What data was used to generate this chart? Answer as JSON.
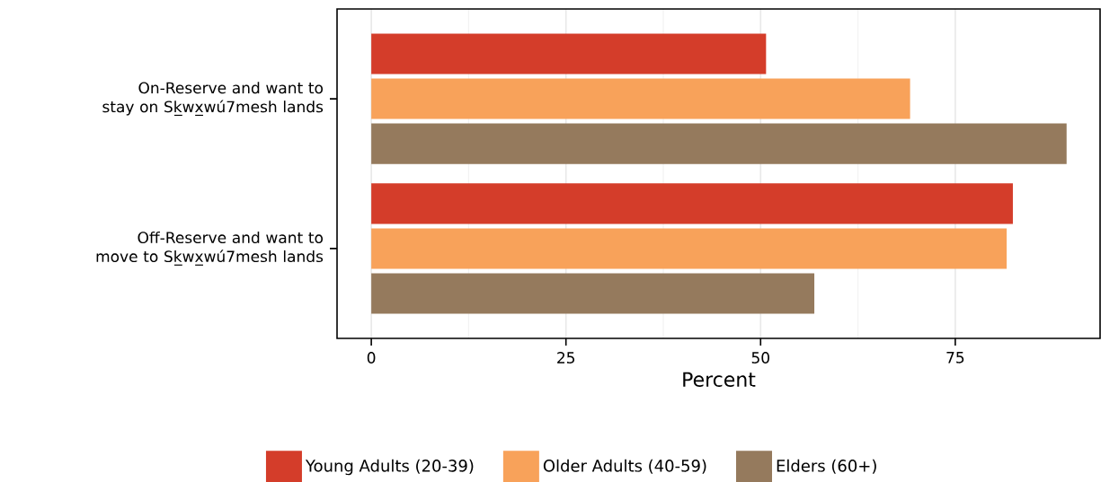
{
  "chart_data": {
    "type": "bar",
    "orientation": "horizontal",
    "xlabel": "Percent",
    "categories": [
      "On-Reserve and want to stay on Sk̲wx̲wú7mesh lands",
      "Off-Reserve and want to move to Sk̲wx̲wú7mesh lands"
    ],
    "series": [
      {
        "name": "Young Adults (20-39)",
        "color": "#d43d2a",
        "values": [
          50.7,
          82.4
        ]
      },
      {
        "name": "Older Adults (40-59)",
        "color": "#f8a25a",
        "values": [
          69.2,
          81.6
        ]
      },
      {
        "name": "Elders (60+)",
        "color": "#957a5d",
        "values": [
          89.3,
          56.9
        ]
      }
    ],
    "xlim": [
      -4.4,
      93.6
    ],
    "xticks": [
      0,
      25,
      50,
      75
    ],
    "grid": "x",
    "legend": "bottom"
  }
}
